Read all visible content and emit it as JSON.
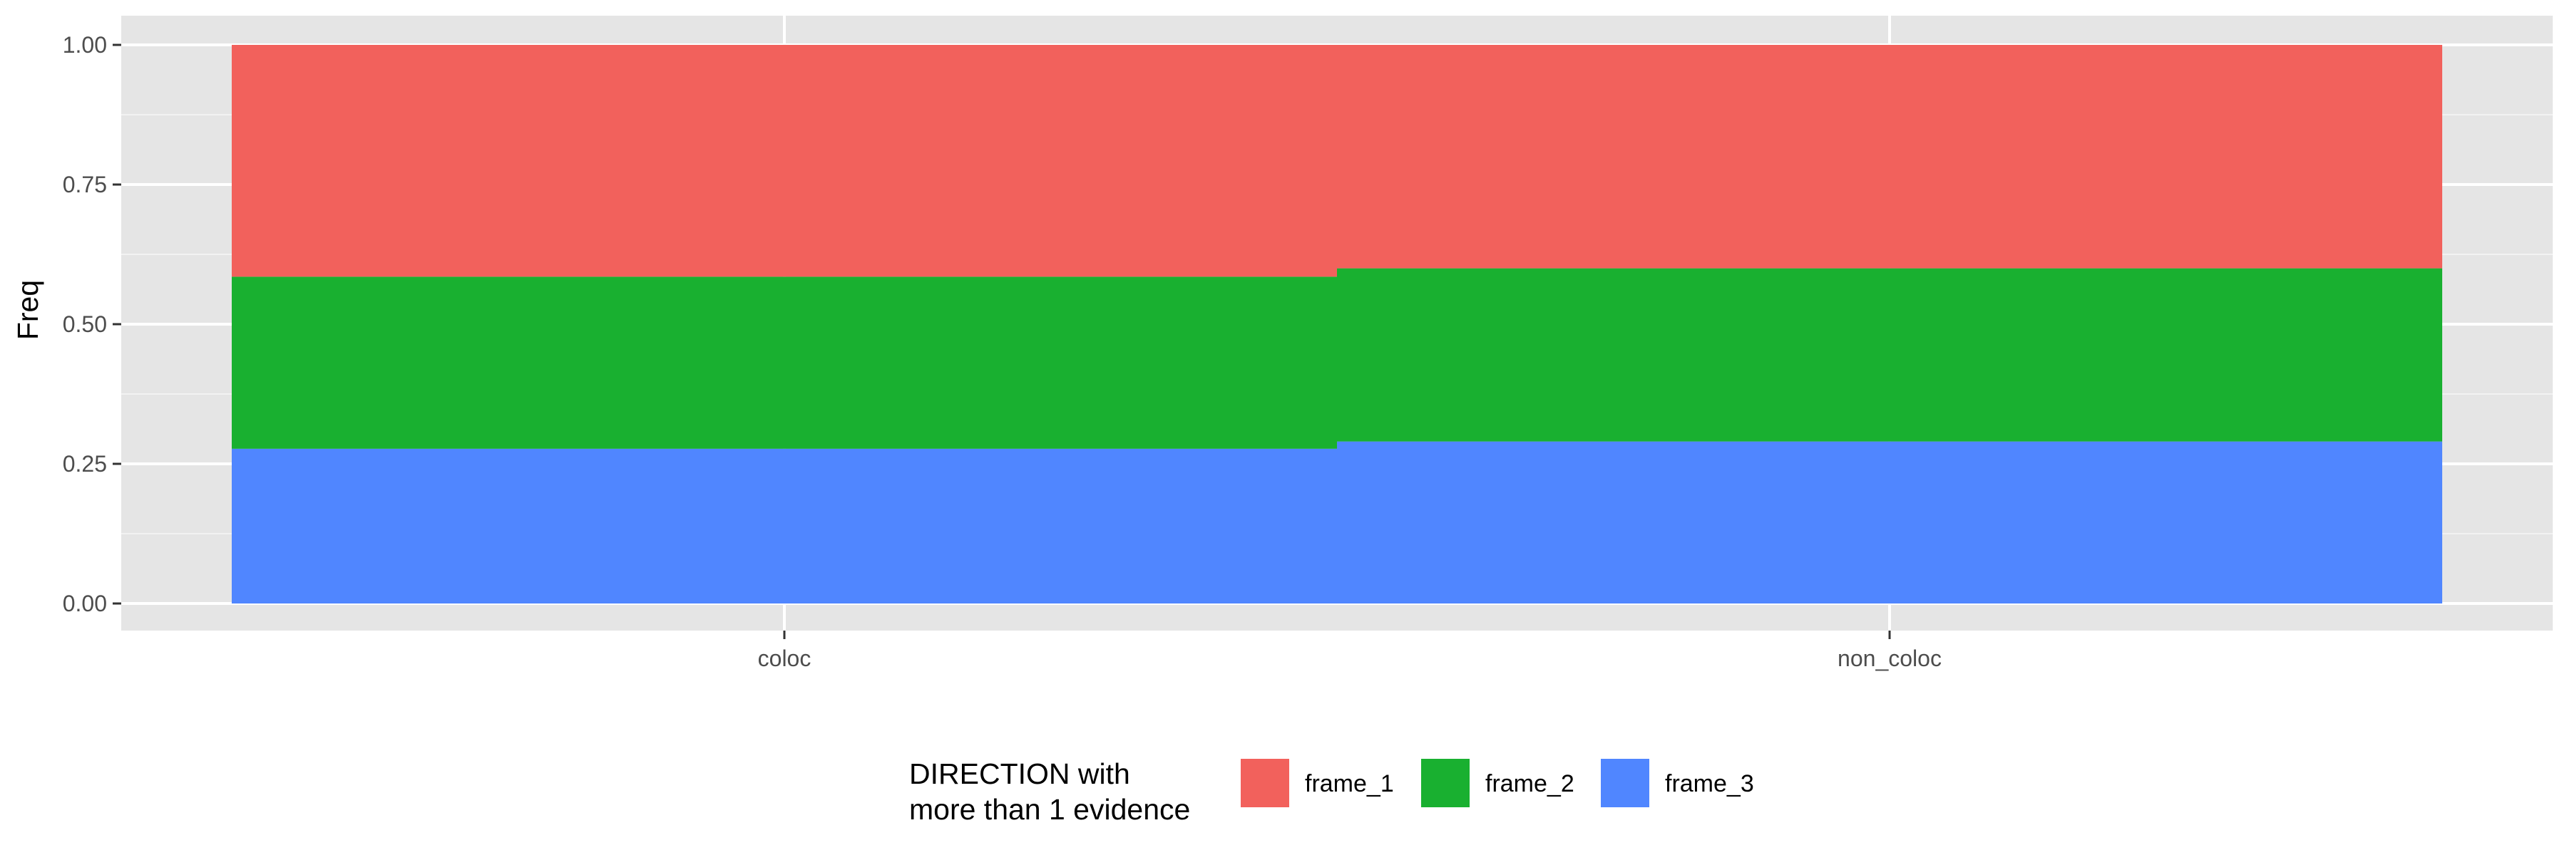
{
  "chart_data": {
    "type": "bar",
    "stacked": true,
    "categories": [
      "coloc",
      "non_coloc"
    ],
    "series": [
      {
        "name": "frame_1",
        "color": "#F2615C",
        "values": [
          0.415,
          0.4
        ]
      },
      {
        "name": "frame_2",
        "color": "#19B030",
        "values": [
          0.308,
          0.31
        ]
      },
      {
        "name": "frame_3",
        "color": "#5086FF",
        "values": [
          0.277,
          0.29
        ]
      }
    ],
    "title": "",
    "xlabel": "",
    "ylabel": "Freq",
    "ylim": [
      0,
      1
    ],
    "yticks": [
      "0.00",
      "0.25",
      "0.50",
      "0.75",
      "1.00"
    ],
    "ytick_values": [
      0,
      0.25,
      0.5,
      0.75,
      1.0
    ],
    "grid": true,
    "panel_background": "#E5E5E5",
    "legend": {
      "title_line1": "DIRECTION with",
      "title_line2": "more than 1 evidence",
      "position": "bottom"
    }
  }
}
